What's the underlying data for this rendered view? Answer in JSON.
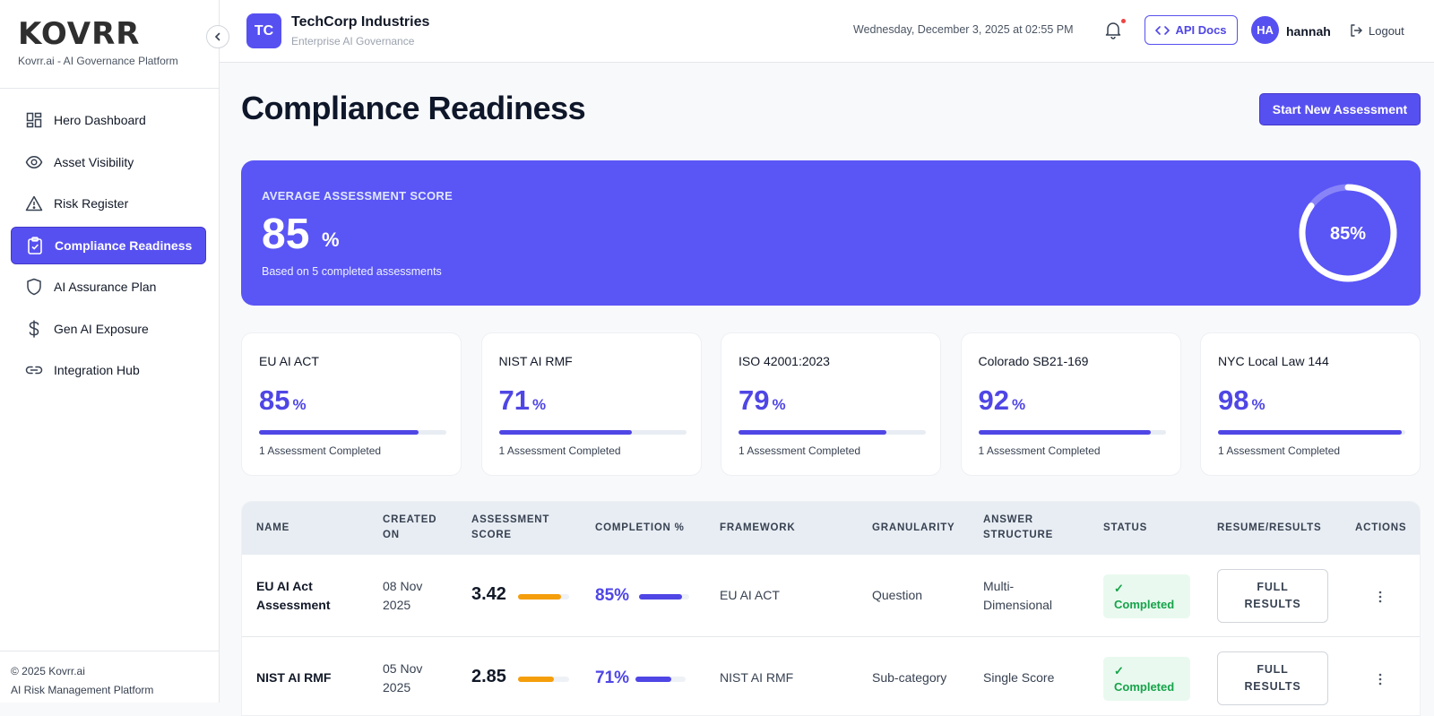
{
  "brand": {
    "logo": "KOVRR",
    "subtitle": "Kovrr.ai - AI Governance Platform"
  },
  "sidebar": {
    "items": [
      {
        "label": "Hero Dashboard",
        "icon": "dashboard-grid-icon"
      },
      {
        "label": "Asset Visibility",
        "icon": "eye-icon"
      },
      {
        "label": "Risk Register",
        "icon": "warning-triangle-icon"
      },
      {
        "label": "Compliance Readiness",
        "icon": "clipboard-check-icon"
      },
      {
        "label": "AI Assurance Plan",
        "icon": "shield-icon"
      },
      {
        "label": "Gen AI Exposure",
        "icon": "dollar-icon"
      },
      {
        "label": "Integration Hub",
        "icon": "link-icon"
      }
    ],
    "active_index": 3,
    "footer_copyright": "© 2025 Kovrr.ai",
    "footer_tagline": "AI Risk Management Platform"
  },
  "header": {
    "org_initials": "TC",
    "org_name": "TechCorp Industries",
    "org_subtitle": "Enterprise AI Governance",
    "datetime": "Wednesday, December 3, 2025 at 02:55 PM",
    "api_docs_label": "API Docs",
    "user_initials": "HA",
    "username": "hannah",
    "logout_label": "Logout"
  },
  "page": {
    "title": "Compliance Readiness",
    "start_button": "Start New Assessment"
  },
  "hero": {
    "label": "AVERAGE ASSESSMENT SCORE",
    "value": "85",
    "unit": "%",
    "note": "Based on 5 completed assessments",
    "ring_label": "85%",
    "ring_percent": 85
  },
  "frameworks": [
    {
      "name": "EU AI ACT",
      "value": "85",
      "unit": "%",
      "percent": 85,
      "note": "1 Assessment Completed"
    },
    {
      "name": "NIST AI RMF",
      "value": "71",
      "unit": "%",
      "percent": 71,
      "note": "1 Assessment Completed"
    },
    {
      "name": "ISO 42001:2023",
      "value": "79",
      "unit": "%",
      "percent": 79,
      "note": "1 Assessment Completed"
    },
    {
      "name": "Colorado SB21-169",
      "value": "92",
      "unit": "%",
      "percent": 92,
      "note": "1 Assessment Completed"
    },
    {
      "name": "NYC Local Law 144",
      "value": "98",
      "unit": "%",
      "percent": 98,
      "note": "1 Assessment Completed"
    }
  ],
  "table": {
    "headers": {
      "name": "NAME",
      "created_1": "CREATED",
      "created_2": "ON",
      "score_1": "ASSESSMENT",
      "score_2": "SCORE",
      "completion": "COMPLETION %",
      "framework": "FRAMEWORK",
      "granularity": "GRANULARITY",
      "answer_1": "ANSWER",
      "answer_2": "STRUCTURE",
      "status": "STATUS",
      "resume": "RESUME/RESULTS",
      "actions": "ACTIONS"
    },
    "rows": [
      {
        "name_1": "EU AI Act",
        "name_2": "Assessment",
        "date_1": "08 Nov",
        "date_2": "2025",
        "score": "3.42",
        "score_fraction": 0.85,
        "completion": "85%",
        "completion_fraction": 0.85,
        "framework": "EU AI ACT",
        "granularity": "Question",
        "answer_1": "Multi-",
        "answer_2": "Dimensional",
        "status_check": "✓",
        "status": "Completed",
        "action_1": "FULL",
        "action_2": "RESULTS"
      },
      {
        "name_1": "NIST AI RMF",
        "name_2": "",
        "date_1": "05 Nov",
        "date_2": "2025",
        "score": "2.85",
        "score_fraction": 0.71,
        "completion": "71%",
        "completion_fraction": 0.71,
        "framework": "NIST AI RMF",
        "granularity": "Sub-category",
        "answer_1": "Single Score",
        "answer_2": "",
        "status_check": "✓",
        "status": "Completed",
        "action_1": "FULL",
        "action_2": "RESULTS"
      }
    ]
  },
  "colors": {
    "accent": "#5750f1",
    "score_bar": "#f59e0b",
    "success": "#16a34a",
    "success_bg": "#e9f9ef"
  }
}
